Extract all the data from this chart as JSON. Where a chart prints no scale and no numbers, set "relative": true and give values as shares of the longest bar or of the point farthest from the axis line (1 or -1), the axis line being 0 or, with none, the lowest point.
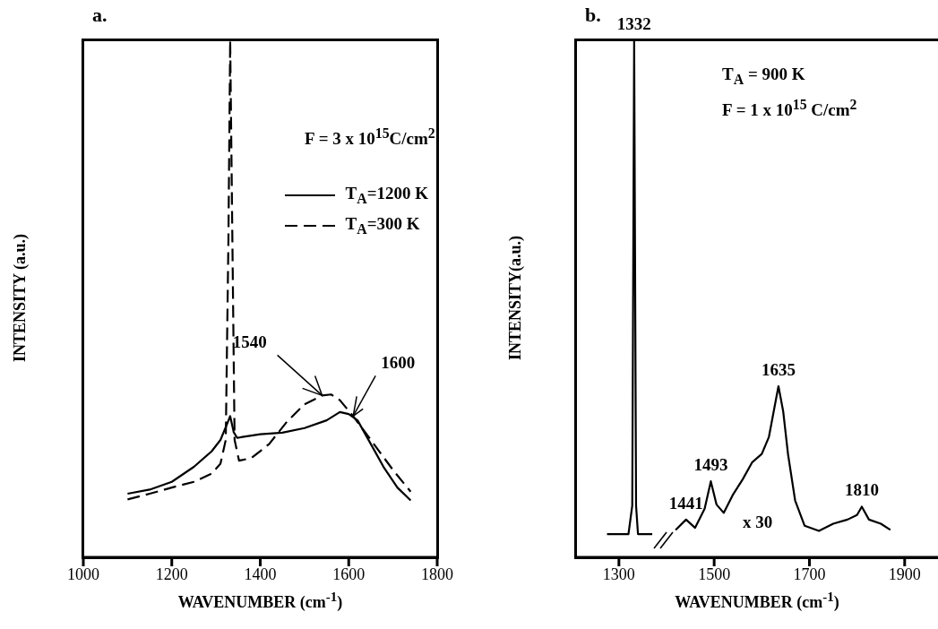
{
  "chart_data": [
    {
      "type": "line",
      "title": "a.",
      "xlabel": "WAVENUMBER (cm$^{-1}$)",
      "ylabel": "INTENSITY (a.u.)",
      "relative": true,
      "xlim": [
        1000,
        1800
      ],
      "xticks": [
        1000,
        1200,
        1400,
        1600,
        1800
      ],
      "tick_labels": "x",
      "legend": "top right",
      "marker": "none",
      "series": [
        {
          "name": "T$_{A}$=1200 K",
          "color": "#000000",
          "line_style": "solid",
          "x": [
            1100,
            1150,
            1200,
            1250,
            1290,
            1310,
            1325,
            1332,
            1340,
            1348,
            1360,
            1400,
            1450,
            1500,
            1550,
            1580,
            1600,
            1620,
            1650,
            1680,
            1710,
            1740
          ],
          "values": [
            0.123,
            0.131,
            0.146,
            0.175,
            0.205,
            0.227,
            0.258,
            0.273,
            0.242,
            0.231,
            0.233,
            0.238,
            0.241,
            0.25,
            0.265,
            0.281,
            0.277,
            0.265,
            0.219,
            0.173,
            0.135,
            0.11
          ]
        },
        {
          "name": "T$_{A}$=300 K",
          "color": "#000000",
          "line_style": "dashed",
          "x": [
            1100,
            1150,
            1200,
            1250,
            1290,
            1310,
            1322,
            1328,
            1332,
            1337,
            1342,
            1352,
            1380,
            1420,
            1460,
            1500,
            1540,
            1560,
            1580,
            1610,
            1650,
            1700,
            1740
          ],
          "values": [
            0.112,
            0.123,
            0.135,
            0.146,
            0.162,
            0.181,
            0.227,
            0.612,
            1,
            0.612,
            0.227,
            0.187,
            0.192,
            0.219,
            0.262,
            0.296,
            0.313,
            0.315,
            0.304,
            0.273,
            0.227,
            0.169,
            0.127
          ]
        }
      ],
      "annotations": [
        "F = 3 x 10$^{15}$C/cm$^{2}$",
        {
          "text": "1540",
          "x": 1540,
          "y": 0.313
        },
        {
          "text": "1600",
          "x": 1610,
          "y": 0.273
        }
      ]
    },
    {
      "type": "line",
      "title": "b.",
      "xlabel": "WAVENUMBER (cm$^{-1}$)",
      "ylabel": "INTENSITY(a.u.)",
      "relative": true,
      "xlim": [
        1210,
        1970
      ],
      "xticks": [
        1300,
        1500,
        1700,
        1900
      ],
      "tick_labels": "x",
      "marker": "none",
      "series": [
        {
          "color": "#000000",
          "line_style": "solid",
          "x": [
            1275,
            1320,
            1328,
            1332,
            1336,
            1340,
            1370,
            1395,
            1419,
            1441,
            1460,
            1480,
            1493,
            1505,
            1520,
            1540,
            1560,
            1580,
            1600,
            1615,
            1625,
            1635,
            1645,
            1655,
            1670,
            1690,
            1720,
            1750,
            1780,
            1800,
            1810,
            1825,
            1850,
            1870
          ],
          "values": [
            0.045,
            0.045,
            0.1,
            1,
            0.1,
            0.045,
            0.045,
            null,
            0.053,
            0.073,
            0.057,
            0.094,
            0.147,
            0.102,
            0.086,
            0.122,
            0.151,
            0.184,
            0.2,
            0.233,
            0.282,
            0.331,
            0.282,
            0.2,
            0.11,
            0.061,
            0.051,
            0.065,
            0.073,
            0.082,
            0.098,
            0.073,
            0.065,
            0.053
          ]
        }
      ],
      "annotations": [
        "T$_{A}$ = 900 K",
        "F = 1 x 10$^{15}$ C/cm$^{2}$",
        "x 30",
        {
          "text": "1332",
          "x": 1332,
          "y": 1
        },
        {
          "text": "1441",
          "x": 1441,
          "y": 0.073
        },
        {
          "text": "1493",
          "x": 1493,
          "y": 0.147
        },
        {
          "text": "1635",
          "x": 1635,
          "y": 0.331
        },
        {
          "text": "1810",
          "x": 1810,
          "y": 0.098
        }
      ]
    }
  ]
}
